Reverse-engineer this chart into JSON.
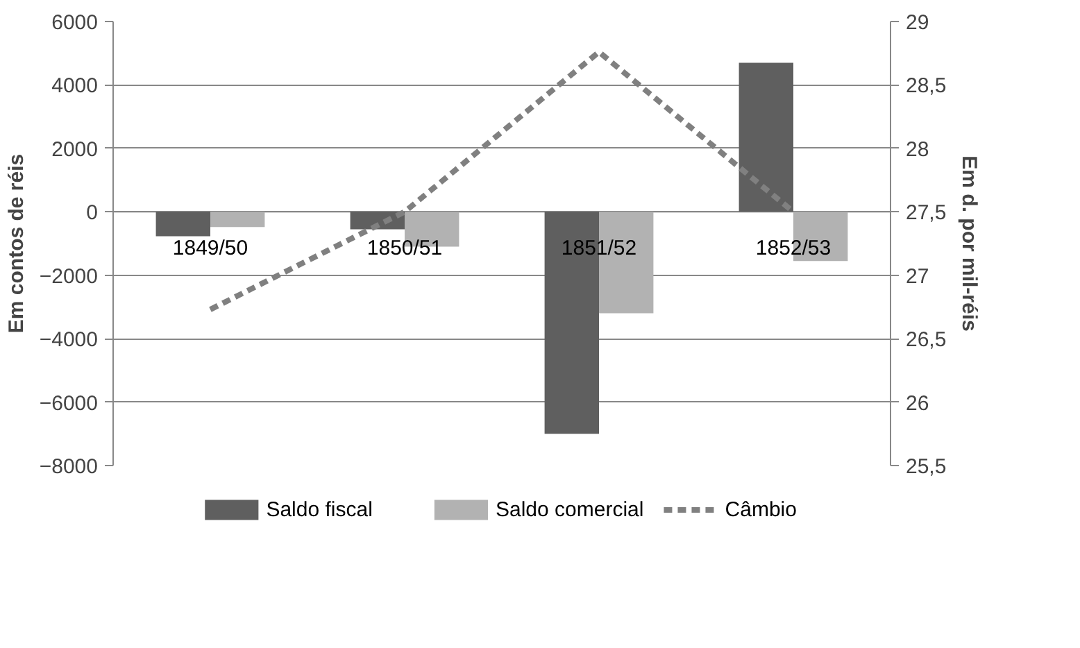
{
  "chart_data": {
    "type": "bar",
    "categories": [
      "1849/50",
      "1850/51",
      "1851/52",
      "1852/53"
    ],
    "ylabel": "Em contos de réis",
    "y2label": "Em d. por mil-réis",
    "ylim": [
      -8000,
      6000
    ],
    "yticks": [
      -8000,
      -6000,
      -4000,
      -2000,
      0,
      2000,
      4000,
      6000
    ],
    "y2lim": [
      25.5,
      29
    ],
    "y2ticks": [
      {
        "value": 25.5,
        "label": "25,5"
      },
      26,
      {
        "value": 26.5,
        "label": "26,5"
      },
      27,
      {
        "value": 27.5,
        "label": "27,5"
      },
      28,
      {
        "value": 28.5,
        "label": "28,5"
      },
      29
    ],
    "grid": "y",
    "legend": "bottom",
    "series": [
      {
        "name": "Saldo fiscal",
        "color": "#5f5f5f",
        "values": [
          -770,
          -550,
          -7000,
          4700
        ]
      },
      {
        "name": "Saldo comercial",
        "color": "#b2b2b2",
        "values": [
          -480,
          -1100,
          -3200,
          -1550
        ]
      },
      {
        "name": "Câmbio",
        "color": "#808080",
        "type": "line",
        "line_style": "dashed",
        "axis": "y2",
        "values": [
          26.73,
          27.5,
          28.76,
          27.5
        ]
      }
    ]
  }
}
